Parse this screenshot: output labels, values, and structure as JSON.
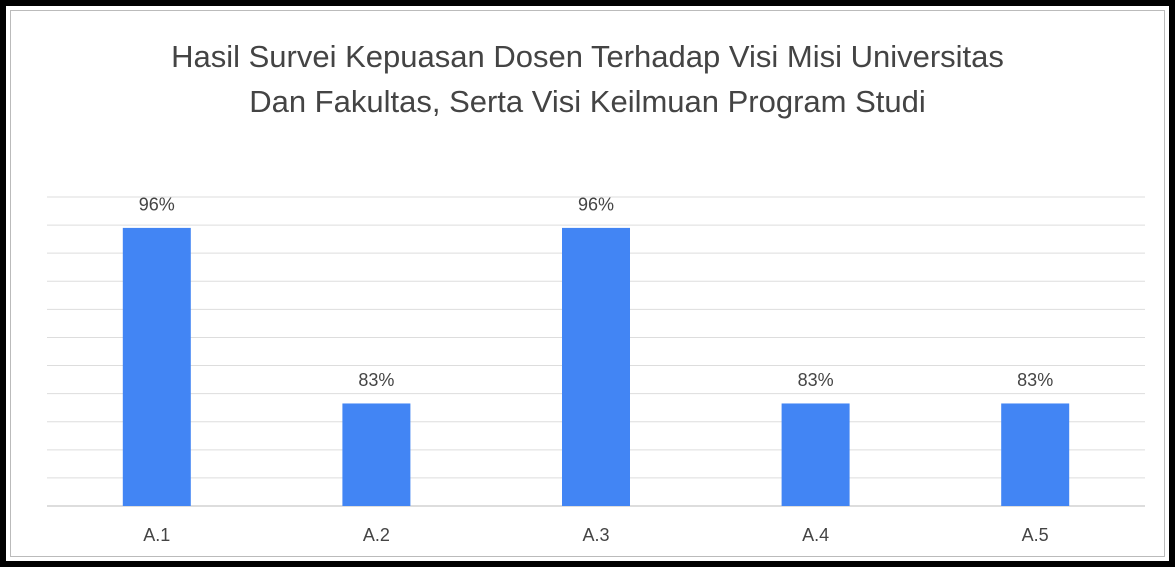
{
  "chart_data": {
    "type": "bar",
    "title": "Hasil Survei Kepuasan Dosen Terhadap Visi Misi Universitas Dan Fakultas, Serta Visi Keilmuan Program Studi",
    "categories": [
      "A.1",
      "A.2",
      "A.3",
      "A.4",
      "A.5"
    ],
    "values": [
      95.8,
      83.3,
      95.8,
      83.3,
      83.3
    ],
    "value_labels": [
      "96%",
      "83%",
      "96%",
      "83%",
      "83%"
    ],
    "color": "#4285f4",
    "ylim": [
      76,
      98
    ],
    "yticks": [
      76,
      78,
      80,
      82,
      84,
      86,
      88,
      90,
      92,
      94,
      96,
      98
    ],
    "grid": true
  }
}
